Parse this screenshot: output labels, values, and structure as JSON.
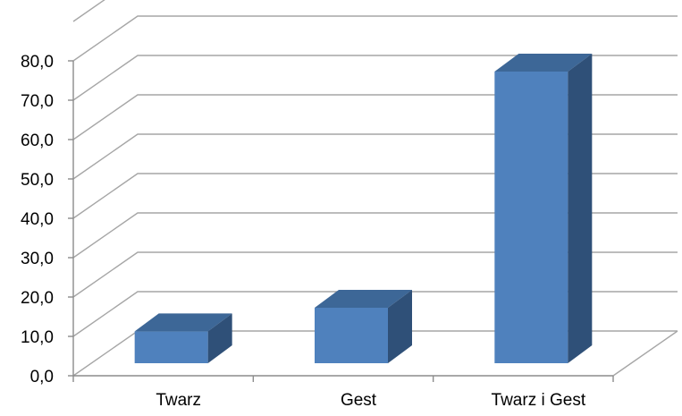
{
  "chart_data": {
    "type": "bar",
    "categories": [
      "Twarz",
      "Gest",
      "Twarz i Gest"
    ],
    "values": [
      9.0,
      15.0,
      75.0
    ],
    "ylim": [
      0,
      80
    ],
    "yticks": [
      "0,0",
      "10,0",
      "20,0",
      "30,0",
      "40,0",
      "50,0",
      "60,0",
      "70,0",
      "80,0"
    ],
    "title": "",
    "xlabel": "",
    "ylabel": "",
    "grid": true,
    "legend": "none",
    "colors": {
      "bar_front": "#4f81bd",
      "bar_top": "#3d6797",
      "bar_side": "#2f5078",
      "grid": "#a6a6a6",
      "axis": "#8c8c8c"
    }
  }
}
